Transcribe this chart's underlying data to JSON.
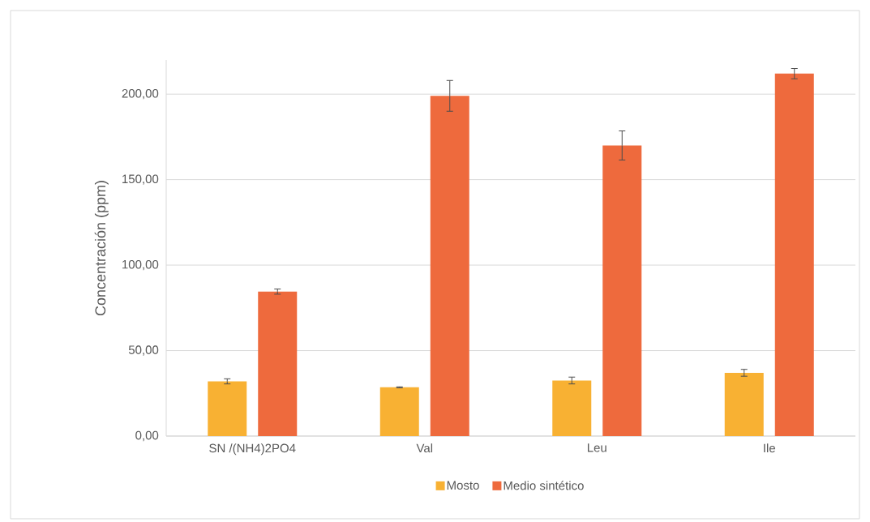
{
  "chart_data": {
    "type": "bar",
    "ylabel": "Concentración (ppm)",
    "categories": [
      "SN /(NH4)2PO4",
      "Val",
      "Leu",
      "Ile"
    ],
    "series": [
      {
        "name": "Mosto",
        "color": "#f8b133",
        "values": [
          32,
          28.5,
          32.5,
          37
        ],
        "errors": [
          1.5,
          0.3,
          2,
          2
        ]
      },
      {
        "name": "Medio sintético",
        "color": "#ee6a3d",
        "values": [
          84.5,
          199,
          170,
          212
        ],
        "errors": [
          1.5,
          9,
          8.5,
          3
        ]
      }
    ],
    "ylim": [
      0,
      220
    ],
    "yticks": [
      {
        "value": 0,
        "label": "0,00"
      },
      {
        "value": 50,
        "label": "50,00"
      },
      {
        "value": 100,
        "label": "100,00"
      },
      {
        "value": 150,
        "label": "150,00"
      },
      {
        "value": 200,
        "label": "200,00"
      }
    ],
    "grid": "y",
    "legend": "bottom"
  }
}
